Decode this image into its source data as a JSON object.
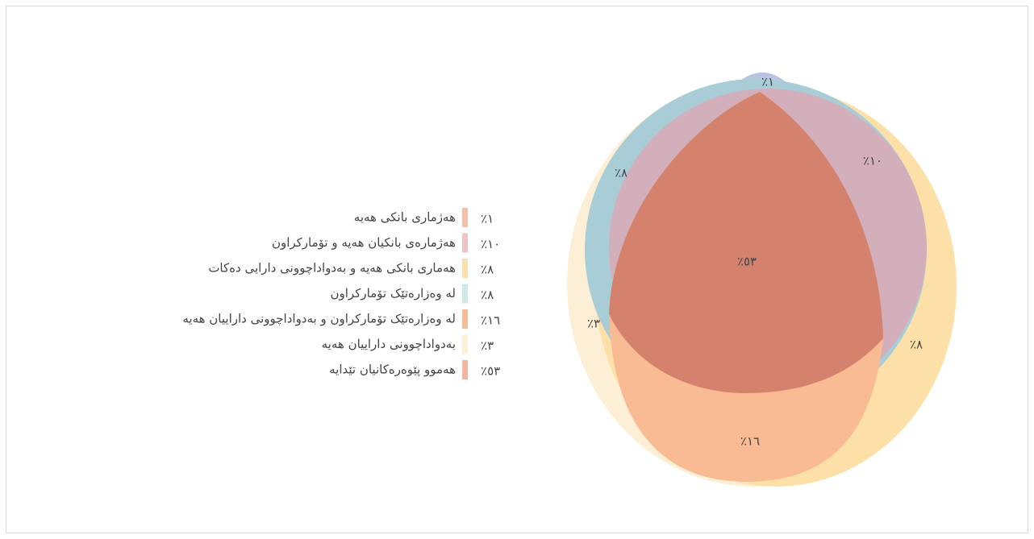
{
  "diagram": {
    "legend": [
      {
        "label": "هەژماری بانکی هەیە",
        "value": "٪١",
        "color": "#f5bfa8"
      },
      {
        "label": "هەژمارەی بانکیان هەیە و تۆمارکراون",
        "value": "٪١٠",
        "color": "#f0c3c6"
      },
      {
        "label": "هەماری بانکی هەیە و بەدواداچوونی دارایی دەکات",
        "value": "٪٨",
        "color": "#fde0a8"
      },
      {
        "label": "لە وەزارەتێک تۆمارکراون",
        "value": "٪٨",
        "color": "#cfe8ea"
      },
      {
        "label": "لە وەزارەتێک تۆمارکراون و بەدواداچوونی داراییان هەیە",
        "value": "٪١٦",
        "color": "#f9bb93"
      },
      {
        "label": "بەدواداچوونی داراییان هەیە",
        "value": "٪٣",
        "color": "#fdf0d5"
      },
      {
        "label": "هەموو پێوەرەکانیان تێدایە",
        "value": "٪٥٣",
        "color": "#f6b59a"
      }
    ],
    "regions": [
      "٪١",
      "٪٨",
      "٪١٠",
      "٪٥٣",
      "٪٣",
      "٪٨",
      "٪١٦"
    ]
  }
}
